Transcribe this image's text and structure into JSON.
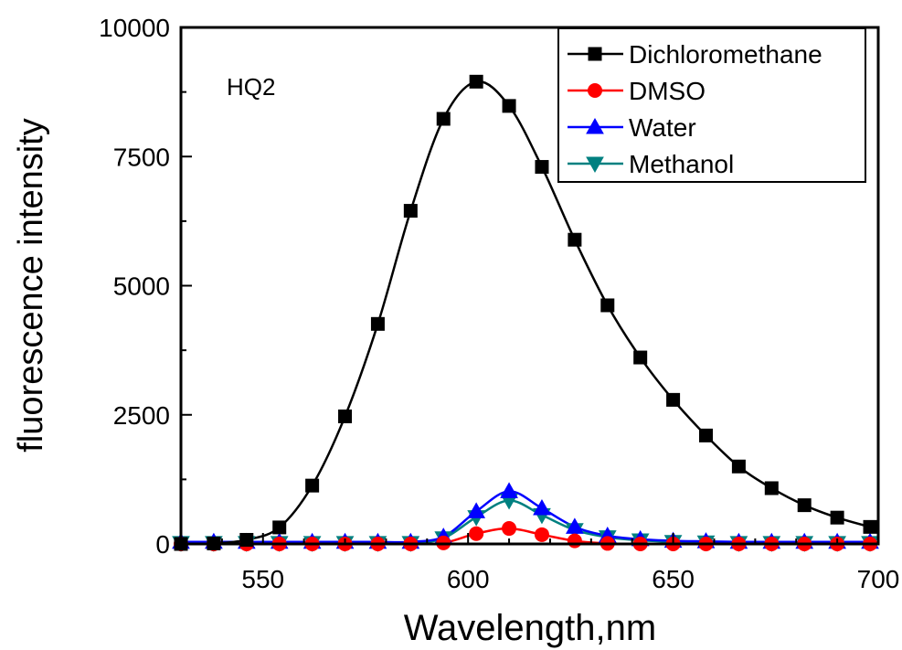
{
  "chart_data": {
    "type": "line",
    "title": "",
    "annotation": "HQ2",
    "xlabel": "Wavelength,nm",
    "ylabel": "fluorescence intensity",
    "xlim": [
      530,
      700
    ],
    "ylim": [
      0,
      10000
    ],
    "x_ticks": [
      550,
      600,
      650,
      700
    ],
    "y_ticks": [
      0,
      2500,
      5000,
      7500,
      10000
    ],
    "x_tick_labels": [
      "550",
      "600",
      "650",
      "700"
    ],
    "y_tick_labels": [
      "0",
      "2500",
      "5000",
      "7500",
      "10000"
    ],
    "grid": false,
    "legend_position": "top-right",
    "x": [
      530,
      538,
      546,
      554,
      562,
      570,
      578,
      586,
      594,
      602,
      610,
      618,
      626,
      634,
      642,
      650,
      658,
      666,
      674,
      682,
      690,
      698
    ],
    "series": [
      {
        "name": "Dichloromethane",
        "color": "#000000",
        "marker": "square",
        "values": [
          0,
          10,
          80,
          320,
          1130,
          2470,
          4260,
          6450,
          8230,
          8950,
          8480,
          7300,
          5890,
          4620,
          3610,
          2790,
          2100,
          1500,
          1080,
          750,
          510,
          330
        ]
      },
      {
        "name": "DMSO",
        "color": "#ff0000",
        "marker": "circle",
        "values": [
          0,
          0,
          0,
          0,
          0,
          0,
          0,
          0,
          20,
          200,
          300,
          180,
          60,
          10,
          0,
          0,
          0,
          0,
          0,
          0,
          0,
          0
        ]
      },
      {
        "name": "Water",
        "color": "#0000ff",
        "marker": "triangle-up",
        "values": [
          40,
          40,
          40,
          40,
          40,
          40,
          40,
          40,
          140,
          630,
          1020,
          690,
          330,
          160,
          90,
          60,
          50,
          40,
          40,
          40,
          40,
          40
        ]
      },
      {
        "name": "Methanol",
        "color": "#008080",
        "marker": "triangle-down",
        "values": [
          20,
          20,
          20,
          20,
          20,
          20,
          20,
          20,
          110,
          520,
          840,
          560,
          270,
          130,
          70,
          40,
          30,
          20,
          20,
          20,
          20,
          20
        ]
      }
    ]
  }
}
